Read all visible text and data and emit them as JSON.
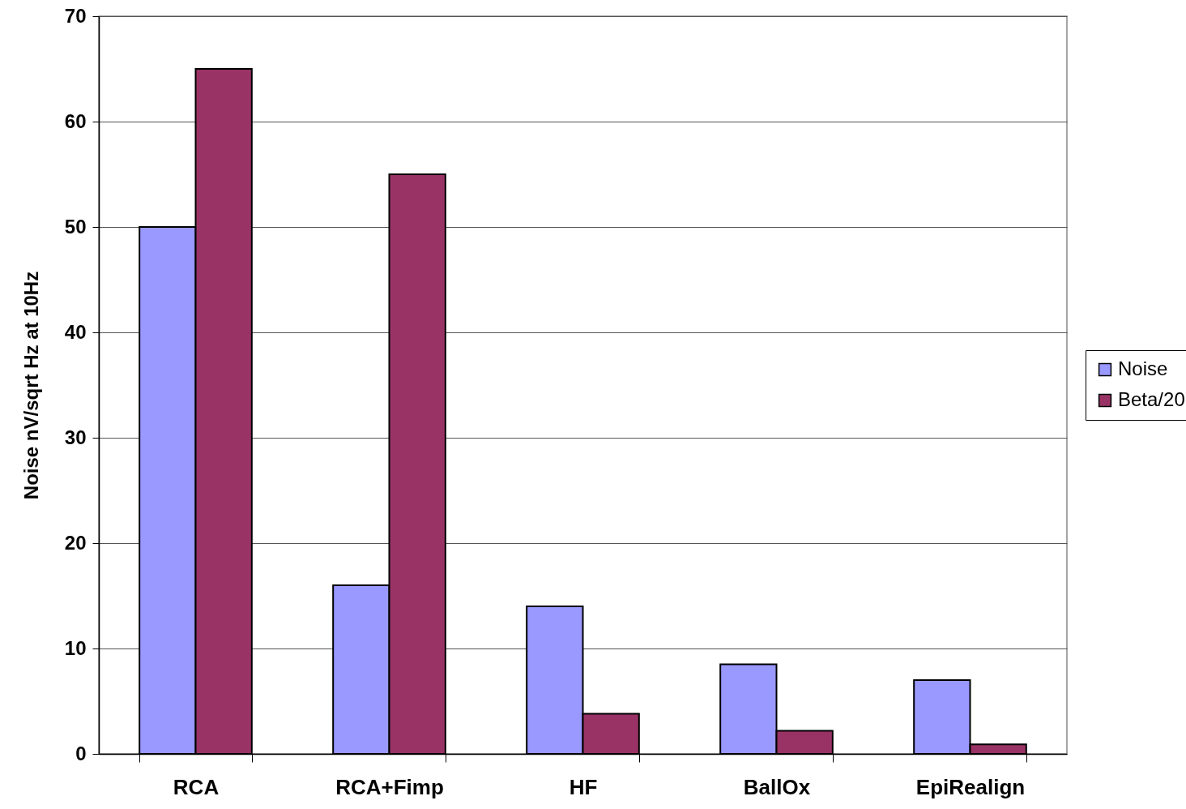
{
  "chart_data": {
    "type": "bar",
    "ylabel": "Noise nV/sqrt Hz at 10Hz",
    "categories": [
      "RCA",
      "RCA+Fimp",
      "HF",
      "BallOx",
      "EpiRealign"
    ],
    "series": [
      {
        "name": "Noise",
        "color": "#9999ff",
        "values": [
          50,
          16,
          14,
          8.5,
          7
        ]
      },
      {
        "name": "Beta/20",
        "color": "#993366",
        "values": [
          65,
          55,
          3.8,
          2.2,
          0.9
        ]
      }
    ],
    "ylim": [
      0,
      70
    ],
    "yticks": [
      0,
      10,
      20,
      30,
      40,
      50,
      60,
      70
    ],
    "grid": "y",
    "legend": "right"
  }
}
